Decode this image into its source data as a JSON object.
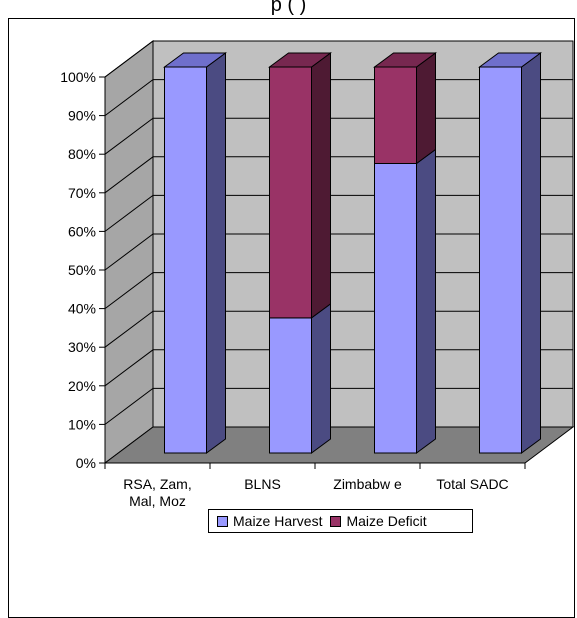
{
  "chart_data": {
    "type": "bar",
    "stacked": true,
    "three_d": true,
    "title": "",
    "categories": [
      "RSA, Zam, Mal, Moz",
      "BLNS",
      "Zimbabw e",
      "Total SADC"
    ],
    "category_lines": [
      [
        "RSA, Zam,",
        "Mal, Moz"
      ],
      [
        "BLNS"
      ],
      [
        "Zimbabw e"
      ],
      [
        "Total SADC"
      ]
    ],
    "series": [
      {
        "name": "Maize Harvest",
        "values": [
          100,
          35,
          75,
          100
        ],
        "color": "#9999ff",
        "side_color": "#4b4b82",
        "top_color": "#6f6fcc"
      },
      {
        "name": "Maize Deficit",
        "values": [
          0,
          65,
          25,
          0
        ],
        "color": "#993366",
        "side_color": "#4e1a33",
        "top_color": "#772850"
      }
    ],
    "ylim": [
      0,
      100
    ],
    "y_ticks": [
      "0%",
      "10%",
      "20%",
      "30%",
      "40%",
      "50%",
      "60%",
      "70%",
      "80%",
      "90%",
      "100%"
    ],
    "grid": true,
    "legend_position": "bottom",
    "title_partial": "p       (        )"
  }
}
